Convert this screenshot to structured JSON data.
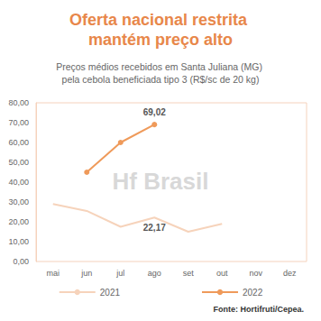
{
  "chart_data": {
    "type": "line",
    "title": "Oferta nacional restrita mantém preço alto",
    "subtitle": "Preços médios recebidos em Santa Juliana (MG) pela cebola beneficiada tipo 3 (R$/sc de 20 kg)",
    "source": "Fonte: Hortifruti/Cepea.",
    "annotations": [
      {
        "text": "Hf Brasil"
      }
    ],
    "categories": [
      "mai",
      "jun",
      "jul",
      "ago",
      "set",
      "out",
      "nov",
      "dez"
    ],
    "series": [
      {
        "name": "2021",
        "color": "#f6d3bb",
        "marker": "none",
        "values": [
          29,
          25.5,
          17.5,
          22.17,
          15,
          19,
          null,
          null
        ],
        "value_labels": [
          null,
          null,
          null,
          "22,17",
          null,
          null,
          null,
          null
        ]
      },
      {
        "name": "2022",
        "color": "#ef9a5a",
        "marker": "circle",
        "values": [
          null,
          45,
          60,
          69.02,
          null,
          null,
          null,
          null
        ],
        "value_labels": [
          null,
          null,
          null,
          "69,02",
          null,
          null,
          null,
          null
        ]
      }
    ],
    "ylim": [
      0,
      80
    ],
    "yticks": [
      {
        "value": 0,
        "label": "0,00"
      },
      {
        "value": 10,
        "label": "10,00"
      },
      {
        "value": 20,
        "label": "20,00"
      },
      {
        "value": 30,
        "label": "30,00"
      },
      {
        "value": 40,
        "label": "40,00"
      },
      {
        "value": 50,
        "label": "50,00"
      },
      {
        "value": 60,
        "label": "60,00"
      },
      {
        "value": 70,
        "label": "70,00"
      },
      {
        "value": 80,
        "label": "80,00"
      }
    ],
    "grid": false,
    "legend": "bottom",
    "data_labels": true
  }
}
